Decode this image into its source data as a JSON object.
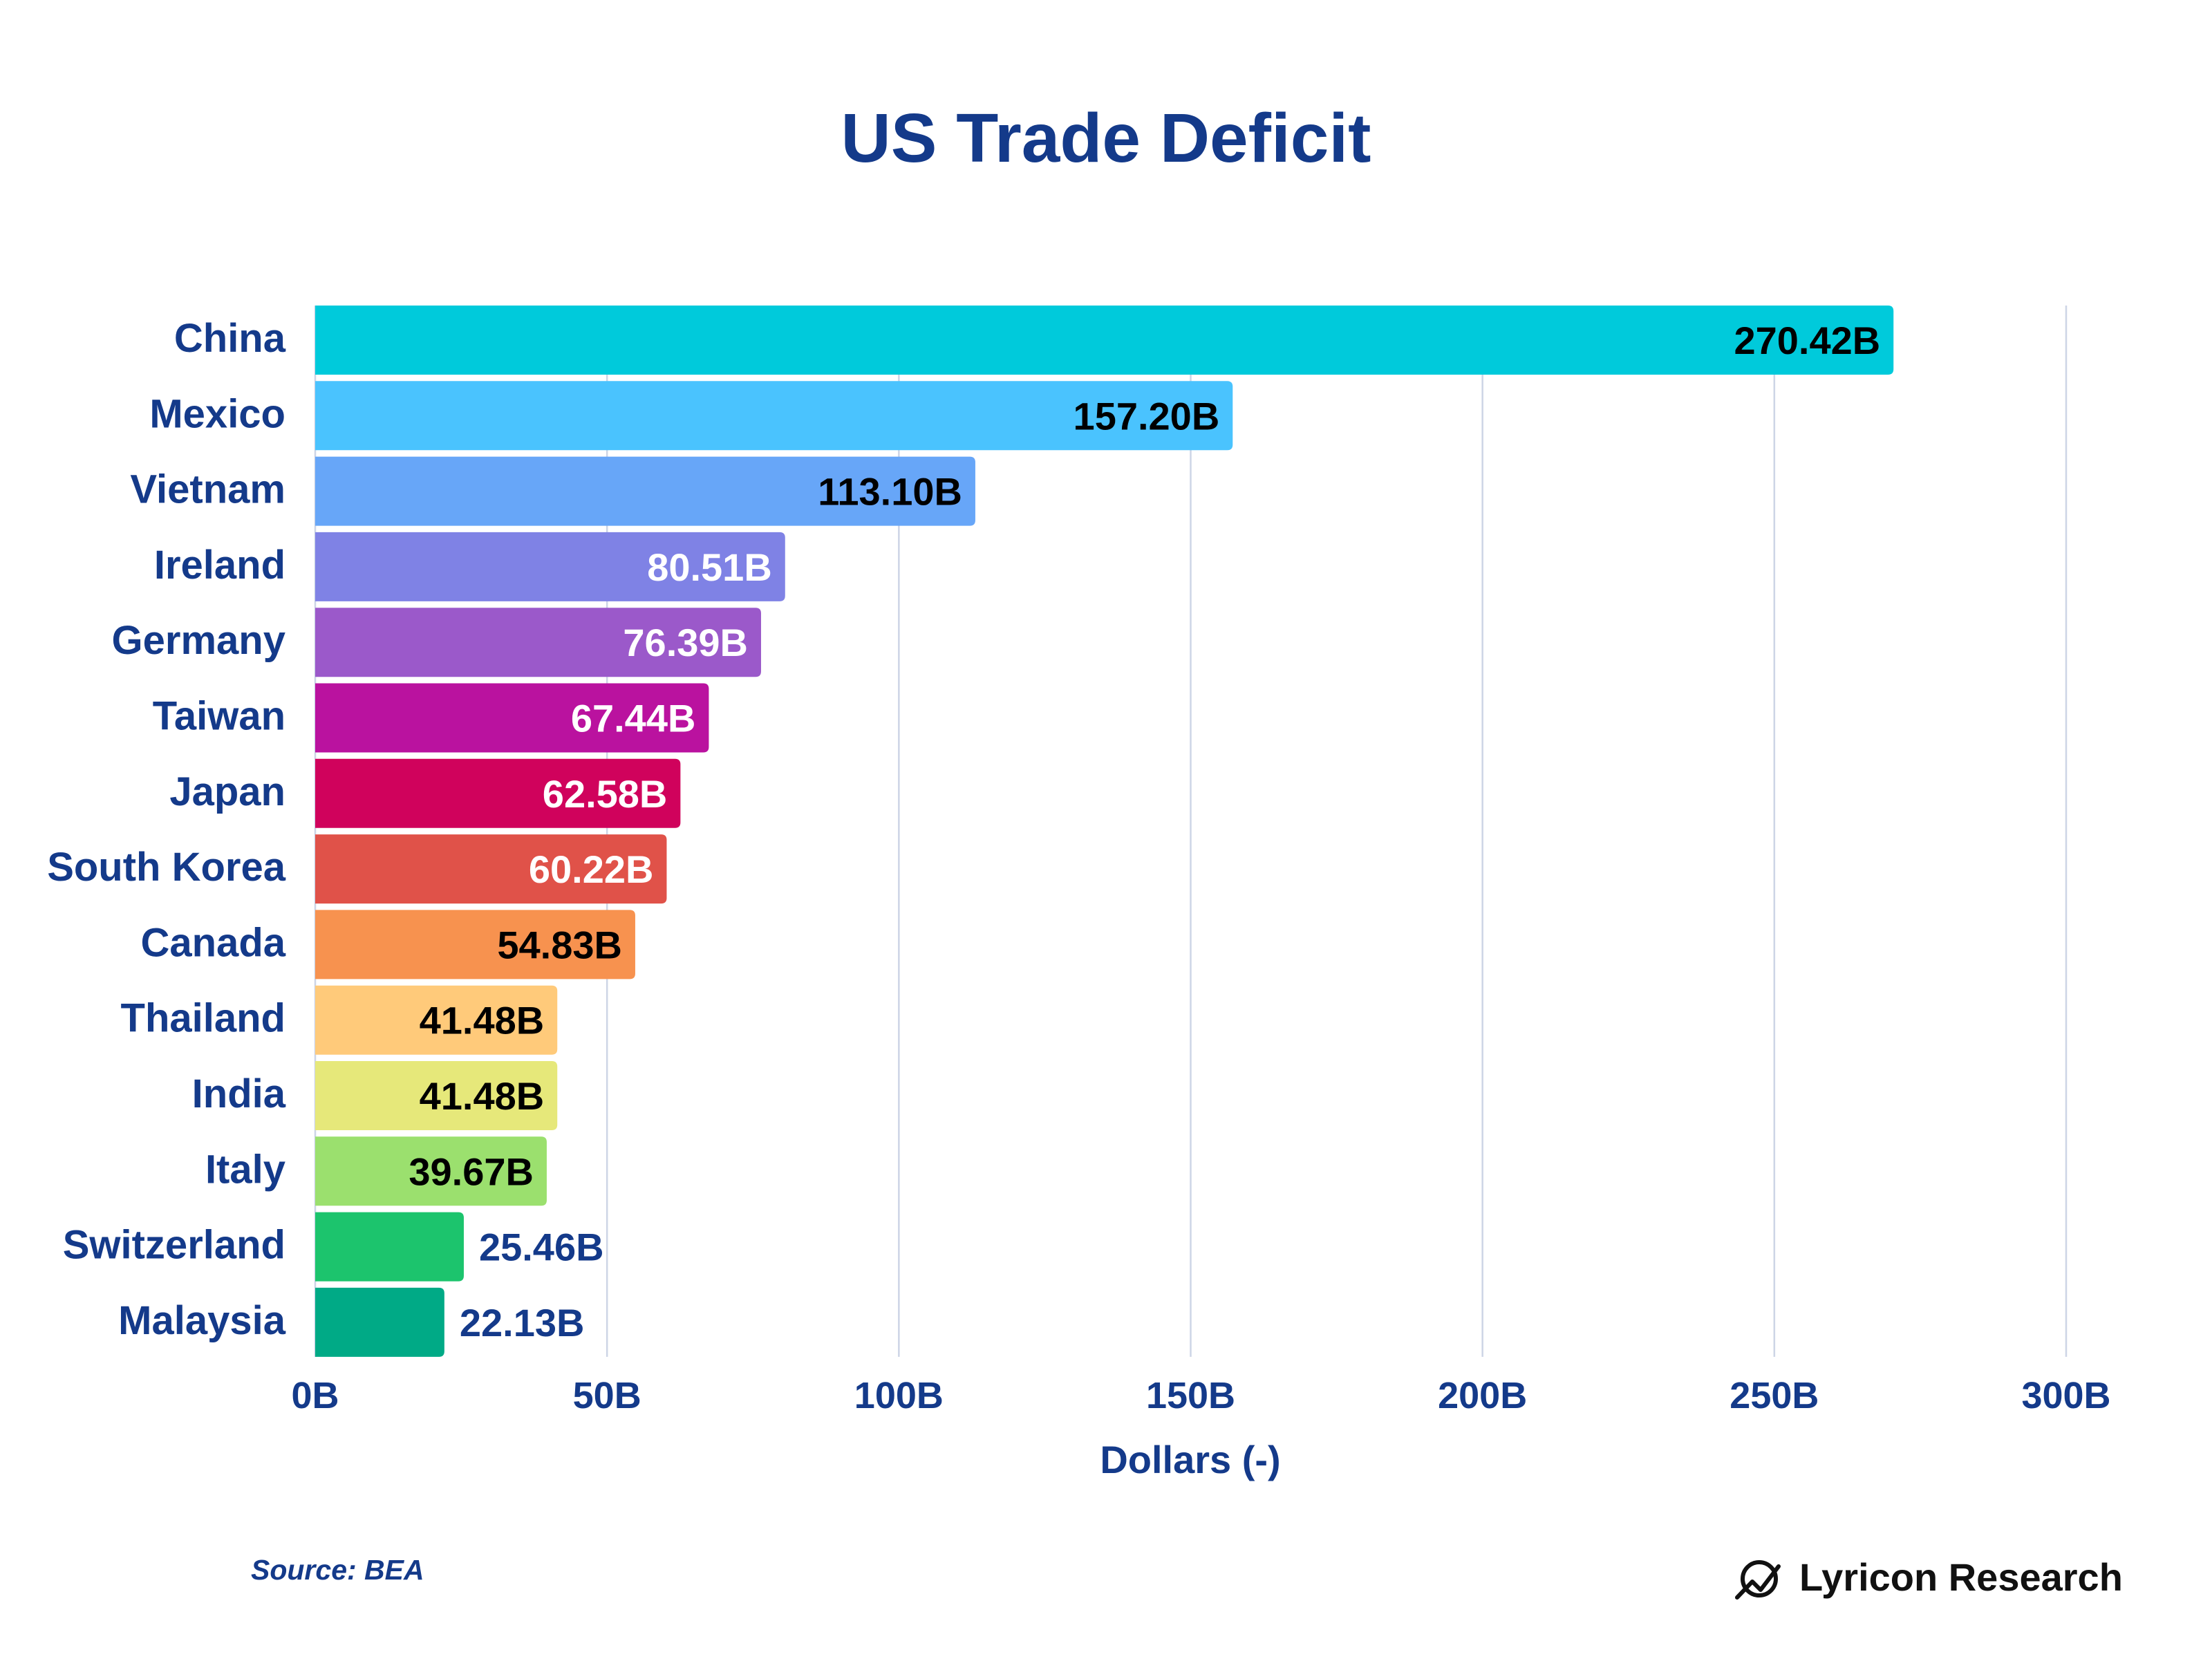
{
  "chart_data": {
    "type": "bar",
    "orientation": "horizontal",
    "title": "US Trade Deficit",
    "xlabel": "Dollars (-)",
    "ylabel": "",
    "xlim": [
      0,
      300
    ],
    "x_ticks": [
      0,
      50,
      100,
      150,
      200,
      250,
      300
    ],
    "x_tick_labels": [
      "0B",
      "50B",
      "100B",
      "150B",
      "200B",
      "250B",
      "300B"
    ],
    "grid": "vertical",
    "unit": "B",
    "categories": [
      "China",
      "Mexico",
      "Vietnam",
      "Ireland",
      "Germany",
      "Taiwan",
      "Japan",
      "South Korea",
      "Canada",
      "Thailand",
      "India",
      "Italy",
      "Switzerland",
      "Malaysia"
    ],
    "values": [
      270.42,
      157.2,
      113.1,
      80.51,
      76.39,
      67.44,
      62.58,
      60.22,
      54.83,
      41.48,
      41.48,
      39.67,
      25.46,
      22.13
    ],
    "data_labels": [
      "270.42B",
      "157.20B",
      "113.10B",
      "80.51B",
      "76.39B",
      "67.44B",
      "62.58B",
      "60.22B",
      "54.83B",
      "41.48B",
      "41.48B",
      "39.67B",
      "25.46B",
      "22.13B"
    ],
    "bar_colors": [
      "#00CADB",
      "#4AC3FE",
      "#67A6F8",
      "#7F82E5",
      "#9B59CA",
      "#BA129F",
      "#D0025C",
      "#E05249",
      "#F7924F",
      "#FFCA7A",
      "#E6E87A",
      "#9BE06E",
      "#1CC46D",
      "#00AA86"
    ],
    "label_colors": [
      "#000000",
      "#000000",
      "#000000",
      "#FFFFFF",
      "#FFFFFF",
      "#FFFFFF",
      "#FFFFFF",
      "#FFFFFF",
      "#000000",
      "#000000",
      "#000000",
      "#000000",
      "#143A8A",
      "#143A8A"
    ],
    "label_positions": [
      "inside",
      "inside",
      "inside",
      "inside",
      "inside",
      "inside",
      "inside",
      "inside",
      "inside",
      "inside",
      "inside",
      "inside",
      "outside",
      "outside"
    ]
  },
  "footer": {
    "source": "Source: BEA",
    "brand": "Lyricon Research",
    "brand_icon": "trend-chart-icon"
  },
  "colors": {
    "text": "#143A8A",
    "grid": "#CDD5E6",
    "brand_text": "#111111"
  }
}
